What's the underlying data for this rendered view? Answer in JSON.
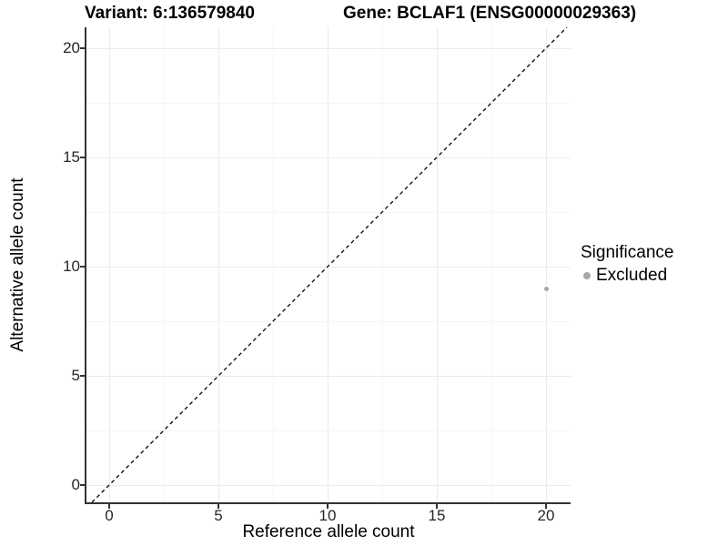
{
  "titles": {
    "variant": "Variant: 6:136579840",
    "gene": "Gene: BCLAF1 (ENSG00000029363)"
  },
  "chart_data": {
    "type": "scatter",
    "title": "Variant: 6:136579840   Gene: BCLAF1 (ENSG00000029363)",
    "xlabel": "Reference allele count",
    "ylabel": "Alternative allele count",
    "xlim": [
      -1.05,
      21.15
    ],
    "ylim": [
      -0.8,
      20.95
    ],
    "x_ticks": [
      0,
      5,
      10,
      15,
      20
    ],
    "y_ticks": [
      0,
      5,
      10,
      15,
      20
    ],
    "grid": "major and minor gridlines, white background",
    "identity_line": {
      "style": "dashed",
      "color": "#000000",
      "slope": 1,
      "intercept": 0
    },
    "series": [
      {
        "name": "Excluded",
        "color": "#a8a8a8",
        "points": [
          {
            "x": 20,
            "y": 9
          }
        ]
      }
    ],
    "legend": {
      "title": "Significance",
      "position": "right",
      "entries": [
        {
          "label": "Excluded",
          "color": "#a8a8a8"
        }
      ]
    },
    "colors": {
      "grid_major": "#ebebeb",
      "grid_minor": "#f5f5f5",
      "axis": "#333333",
      "point": "#a8a8a8",
      "text": "#000000"
    }
  }
}
